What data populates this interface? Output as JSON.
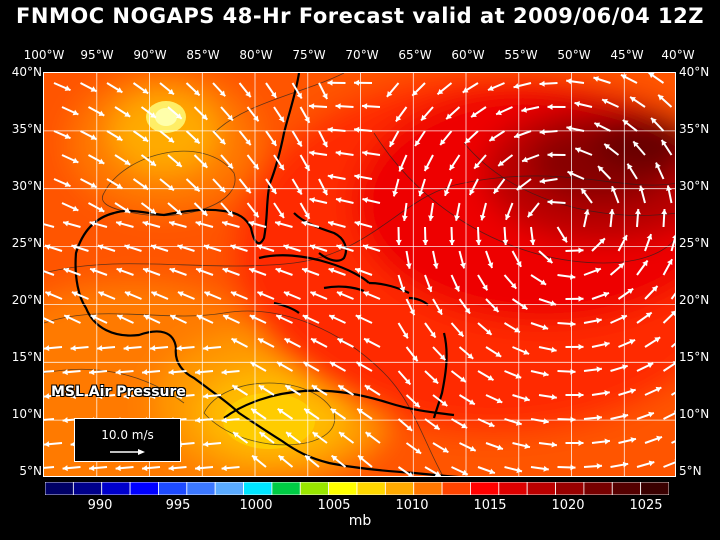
{
  "title": "FNMOC NOGAPS 48-Hr Forecast valid at 2009/06/04 12Z",
  "field_label": "MSL Air Pressure",
  "reference_vector_label": "10.0 m/s",
  "unit": "mb",
  "lon_labels": [
    "100°W",
    "95°W",
    "90°W",
    "85°W",
    "80°W",
    "75°W",
    "70°W",
    "65°W",
    "60°W",
    "55°W",
    "50°W",
    "45°W",
    "40°W"
  ],
  "lat_labels": [
    "40°N",
    "35°N",
    "30°N",
    "25°N",
    "20°N",
    "15°N",
    "10°N",
    "5°N"
  ],
  "colorbar": {
    "colors": [
      "#000066",
      "#00008b",
      "#0000cc",
      "#0000ff",
      "#1e4bff",
      "#3c78ff",
      "#5aaaff",
      "#00e5ff",
      "#00cc44",
      "#99e600",
      "#ffff00",
      "#ffd700",
      "#ffaa00",
      "#ff7700",
      "#ff4400",
      "#ff0000",
      "#dd0000",
      "#bb0000",
      "#990000",
      "#770000",
      "#550000",
      "#3a0000"
    ],
    "ticks": [
      "990",
      "995",
      "1000",
      "1005",
      "1010",
      "1015",
      "1020",
      "1025"
    ]
  },
  "colors": {
    "frame": "#000000",
    "text": "#ffffff",
    "grid": "#ffffff",
    "coast": "#000000"
  }
}
